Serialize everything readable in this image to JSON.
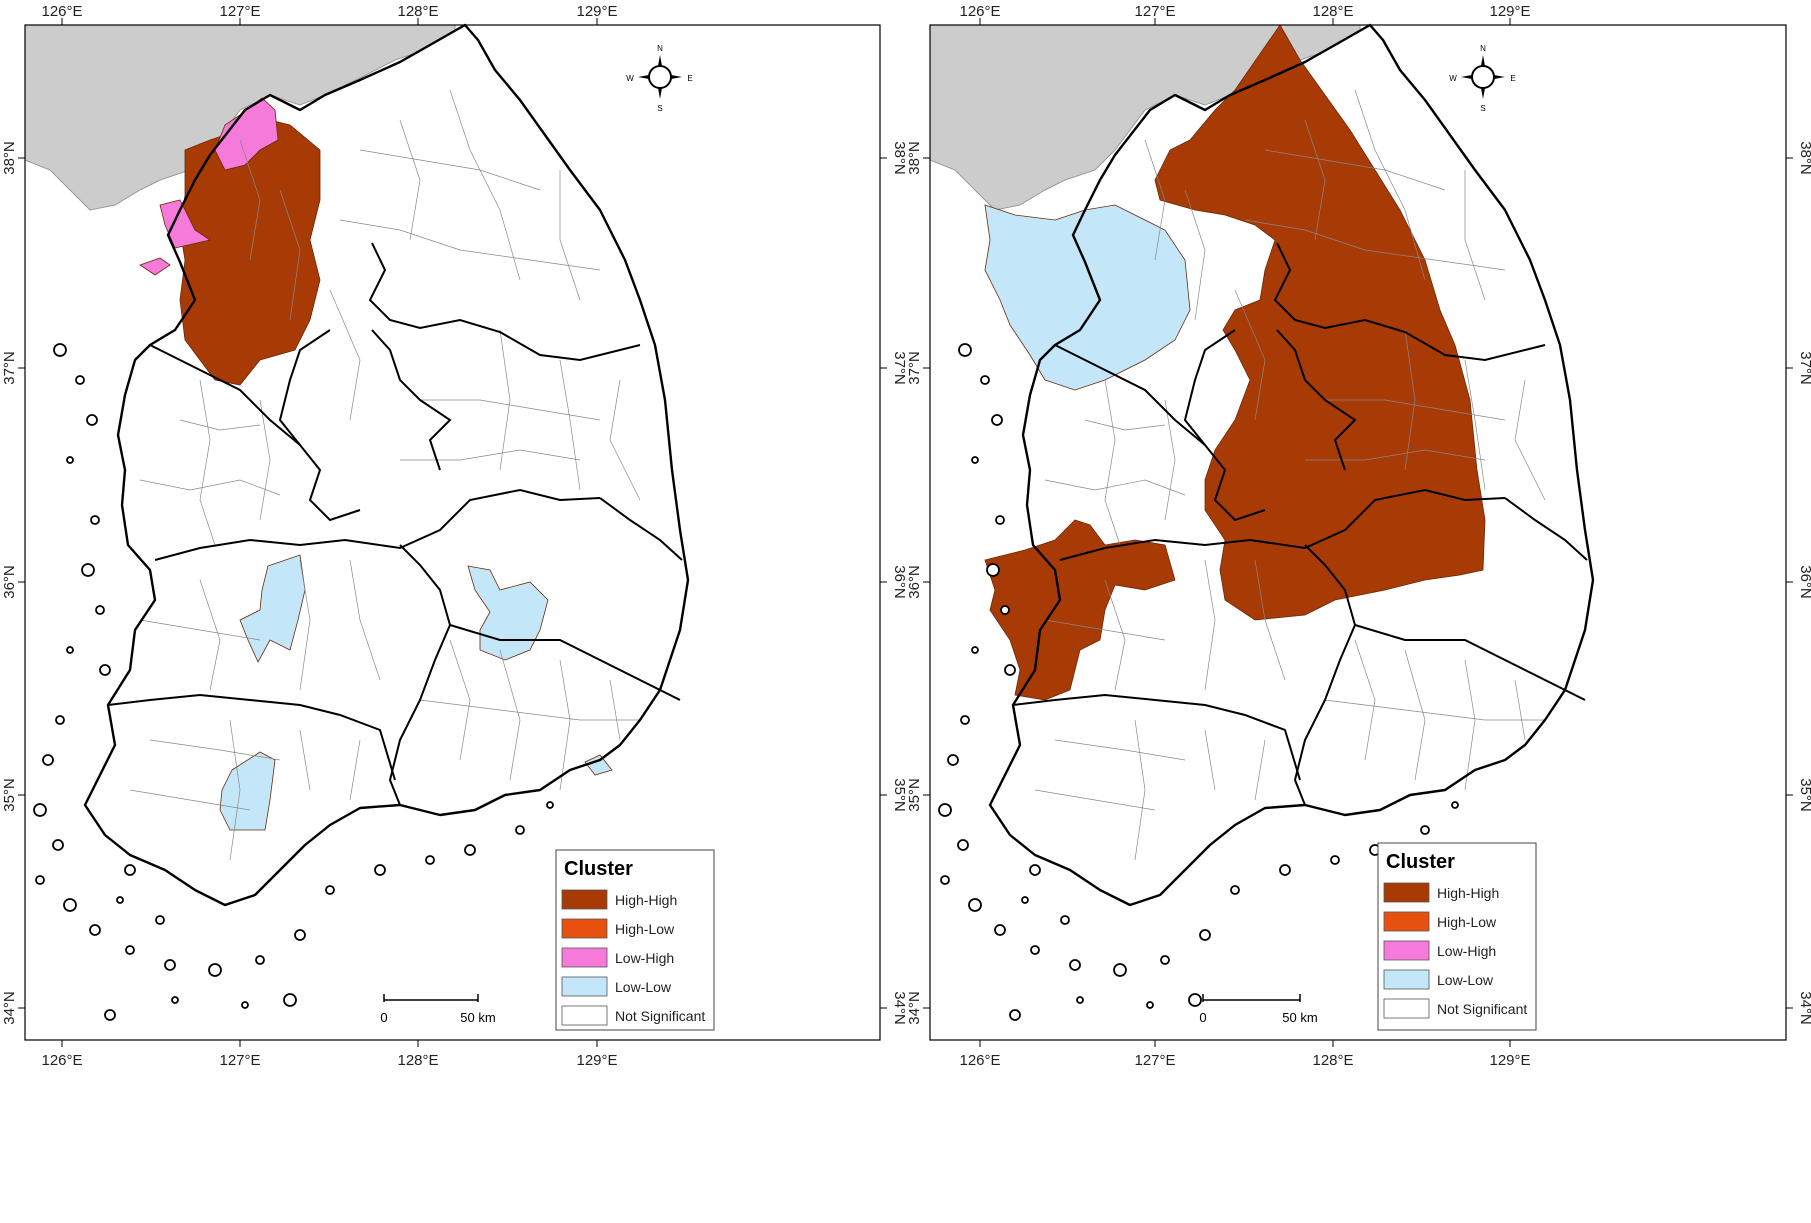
{
  "axes": {
    "longitude_ticks": [
      "126°E",
      "127°E",
      "128°E",
      "129°E"
    ],
    "latitude_ticks": [
      "38°N",
      "37°N",
      "36°N",
      "35°N",
      "34°N"
    ]
  },
  "compass": {
    "n": "N",
    "s": "S",
    "e": "E",
    "w": "W"
  },
  "scale_bar": {
    "start": "0",
    "end": "50 km"
  },
  "legend": {
    "title": "Cluster",
    "items": [
      {
        "label": "High-High",
        "color": "#a83a06"
      },
      {
        "label": "High-Low",
        "color": "#e8500f"
      },
      {
        "label": "Low-High",
        "color": "#f57ad9"
      },
      {
        "label": "Low-Low",
        "color": "#c3e6f8"
      },
      {
        "label": "Not Significant",
        "color": "#ffffff"
      }
    ]
  },
  "colors": {
    "sea": "#ffffff",
    "north": "#cccccc",
    "outline": "#000000",
    "boundary": "#888888"
  }
}
